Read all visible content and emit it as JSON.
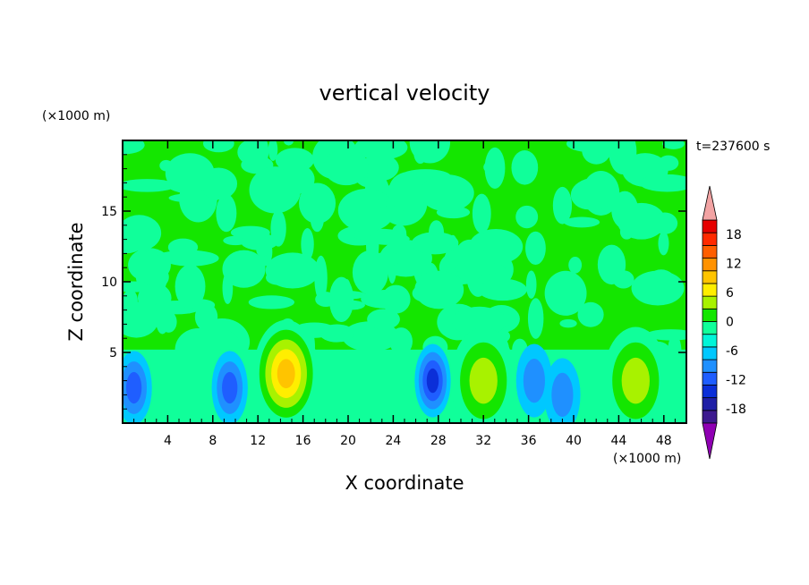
{
  "chart_data": {
    "type": "heatmap",
    "title": "vertical velocity",
    "xlabel": "X coordinate",
    "ylabel": "Z coordinate",
    "x_unit": "(×1000 m)",
    "y_unit": "(×1000 m)",
    "time_label": "t=237600 s",
    "xlim": [
      0,
      50
    ],
    "ylim": [
      0,
      20
    ],
    "xticks": [
      4,
      8,
      12,
      16,
      20,
      24,
      28,
      32,
      36,
      40,
      44,
      48
    ],
    "yticks": [
      5,
      10,
      15
    ],
    "colorbar": {
      "ticks": [
        18,
        12,
        6,
        0,
        -6,
        -12,
        -18
      ],
      "levels": [
        -21,
        -18,
        -15,
        -12,
        -9,
        -6,
        -3,
        0,
        3,
        6,
        9,
        12,
        15,
        18,
        21
      ],
      "colors": [
        "#3d1a8f",
        "#1f1fa6",
        "#0b2fd8",
        "#1f5eff",
        "#1f90ff",
        "#00c8ff",
        "#00f5d8",
        "#10ff9a",
        "#14e600",
        "#a8f200",
        "#ffee00",
        "#ffc400",
        "#ff9200",
        "#ff5e00",
        "#ff2a00",
        "#e60000"
      ],
      "over_color": "#f2a3a3",
      "under_color": "#8f00b3"
    },
    "features": [
      {
        "kind": "updraft",
        "x": 14.5,
        "z": 3.5,
        "peak": 12
      },
      {
        "kind": "updraft",
        "x": 32.0,
        "z": 3.0,
        "peak": 8
      },
      {
        "kind": "updraft",
        "x": 45.5,
        "z": 3.0,
        "peak": 6
      },
      {
        "kind": "downdraft",
        "x": 1.0,
        "z": 2.5,
        "peak": -10
      },
      {
        "kind": "downdraft",
        "x": 9.5,
        "z": 2.5,
        "peak": -10
      },
      {
        "kind": "downdraft",
        "x": 27.5,
        "z": 3.0,
        "peak": -12
      },
      {
        "kind": "downdraft",
        "x": 36.5,
        "z": 3.0,
        "peak": -8
      },
      {
        "kind": "downdraft",
        "x": 39.0,
        "z": 2.0,
        "peak": -8
      }
    ]
  }
}
